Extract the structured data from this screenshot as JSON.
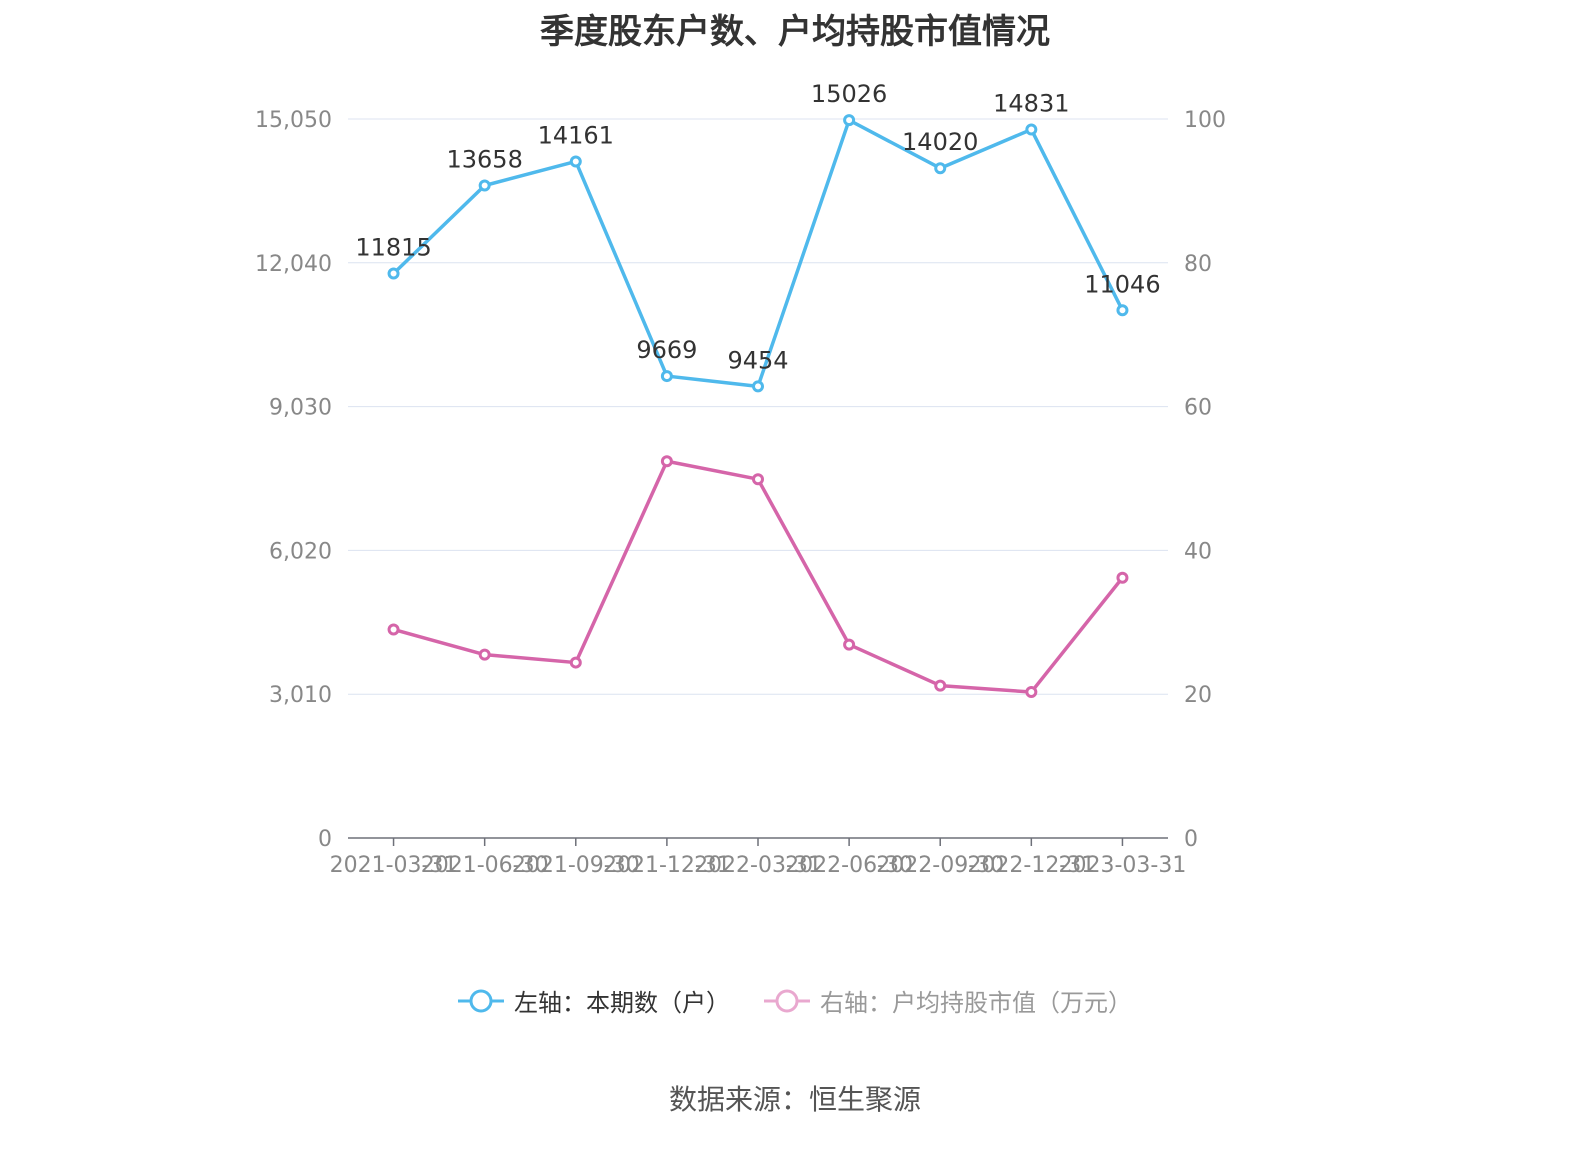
{
  "page": {
    "title": "季度股东户数、户均持股市值情况",
    "source": "数据来源：恒生聚源"
  },
  "colors": {
    "series1": "#4FB9EC",
    "series2": "#D565A9",
    "series2_legend": "#E9A8CF",
    "grid": "#DCE3F0",
    "axis_text": "#888888",
    "label_text": "#333333"
  },
  "chart_data": {
    "type": "line",
    "categories": [
      "2021-03-31",
      "2021-06-30",
      "2021-09-30",
      "2021-12-31",
      "2022-03-31",
      "2022-06-30",
      "2022-09-30",
      "2022-12-31",
      "2023-03-31"
    ],
    "y_left": {
      "ticks": [
        "0",
        "3,010",
        "6,020",
        "9,030",
        "12,040",
        "15,050"
      ],
      "min": 0,
      "max": 15050
    },
    "y_right": {
      "ticks": [
        "0",
        "20",
        "40",
        "60",
        "80",
        "100"
      ],
      "min": 0,
      "max": 100
    },
    "series": [
      {
        "name": "左轴：本期数（户）",
        "axis": "left",
        "values": [
          11815,
          13658,
          14161,
          9669,
          9454,
          15026,
          14020,
          14831,
          11046
        ],
        "labels": [
          "11815",
          "13658",
          "14161",
          "9669",
          "9454",
          "15026",
          "14020",
          "14831",
          "11046"
        ]
      },
      {
        "name": "右轴：户均持股市值（万元）",
        "axis": "right",
        "values": [
          29.0,
          25.5,
          24.4,
          52.4,
          49.9,
          26.9,
          21.2,
          20.3,
          36.2
        ]
      }
    ],
    "grid": true,
    "legend_position": "bottom"
  }
}
